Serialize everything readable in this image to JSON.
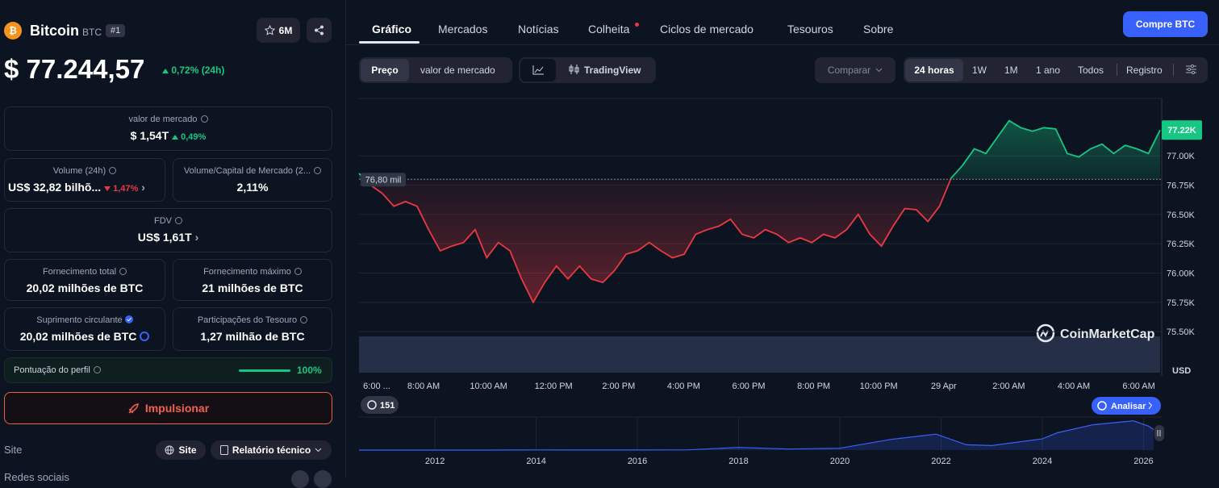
{
  "header": {
    "name": "Bitcoin",
    "symbol": "BTC",
    "rank": "#1",
    "watchlist": "6M"
  },
  "price": {
    "value": "$ 77.244,57",
    "change": "0,72% (24h)"
  },
  "stats": {
    "market_cap": {
      "label": "valor de mercado",
      "value": "$ 1,54T",
      "change": "0,49%"
    },
    "volume": {
      "label": "Volume (24h)",
      "value": "US$ 32,82 bilhõ...",
      "change": "1,47%"
    },
    "volume_ratio": {
      "label": "Volume/Capital de Mercado (2...",
      "value": "2,11%"
    },
    "fdv": {
      "label": "FDV",
      "value": "US$ 1,61T"
    },
    "total_supply": {
      "label": "Fornecimento total",
      "value": "20,02 milhões de BTC"
    },
    "max_supply": {
      "label": "Fornecimento máximo",
      "value": "21 milhões de BTC"
    },
    "circulating": {
      "label": "Suprimento circulante",
      "value": "20,02 milhões de BTC"
    },
    "treasury": {
      "label": "Participações do Tesouro",
      "value": "1,27 milhão de BTC"
    }
  },
  "profile": {
    "label": "Pontuação do perfil",
    "value": "100%"
  },
  "boost": "Impulsionar",
  "links": {
    "label": "Site",
    "site": "Site",
    "whitepaper": "Relatório técnico",
    "social": "Redes sociais"
  },
  "tabs": [
    "Gráfico",
    "Mercados",
    "Notícias",
    "Colheita",
    "Ciclos de mercado",
    "Tesouros",
    "Sobre"
  ],
  "buy": "Compre BTC",
  "toolbar": {
    "price": "Preço",
    "market_cap": "valor de mercado",
    "tradingview": "TradingView",
    "compare": "Comparar",
    "ranges": [
      "24 horas",
      "1W",
      "1M",
      "1 ano",
      "Todos"
    ],
    "log": "Registro"
  },
  "chart_data": {
    "type": "line",
    "values": [
      76850,
      76750,
      76680,
      76570,
      76610,
      76570,
      76370,
      76190,
      76230,
      76260,
      76370,
      76130,
      76260,
      76190,
      75950,
      75750,
      75920,
      76060,
      75950,
      76060,
      75950,
      75920,
      76020,
      76160,
      76190,
      76260,
      76190,
      76130,
      76160,
      76330,
      76370,
      76400,
      76460,
      76330,
      76300,
      76370,
      76330,
      76260,
      76300,
      76260,
      76330,
      76300,
      76370,
      76500,
      76330,
      76230,
      76400,
      76550,
      76540,
      76440,
      76570,
      76810,
      76920,
      77060,
      77020,
      77160,
      77300,
      77240,
      77210,
      77240,
      77230,
      77020,
      76990,
      77060,
      77100,
      77020,
      77090,
      77060,
      77020,
      77220
    ],
    "ylim": [
      75150,
      77490
    ],
    "yticks": [
      {
        "value": 75500,
        "label": "75.50K"
      },
      {
        "value": 75750,
        "label": "75.75K"
      },
      {
        "value": 76000,
        "label": "76.00K"
      },
      {
        "value": 76250,
        "label": "76.25K"
      },
      {
        "value": 76500,
        "label": "76.50K"
      },
      {
        "value": 76750,
        "label": "76.75K"
      },
      {
        "value": 77000,
        "label": "77.00K"
      }
    ],
    "reference": {
      "value": 76800,
      "label": "76,80 mil"
    },
    "current": {
      "value": 77220,
      "label": "77.22K"
    },
    "x_labels": [
      "6:00 ...",
      "8:00 AM",
      "10:00 AM",
      "12:00 PM",
      "2:00 PM",
      "4:00 PM",
      "6:00 PM",
      "8:00 PM",
      "10:00 PM",
      "29 Apr",
      "2:00 AM",
      "4:00 AM",
      "6:00 AM"
    ],
    "unit": "USD",
    "up_color": "#16c784",
    "down_color": "#ea3943",
    "grid": true,
    "watermark": "CoinMarketCap",
    "events": "151",
    "analyze": "Analisar"
  },
  "navigator": {
    "type": "line",
    "x": [
      2010.5,
      2011.5,
      2012,
      2013,
      2014,
      2015,
      2016,
      2017,
      2018,
      2019,
      2020,
      2021,
      2021.9,
      2022.5,
      2023,
      2024,
      2024.3,
      2025,
      2025.8,
      2026.1,
      2026.2
    ],
    "values": [
      0,
      10,
      5,
      100,
      500,
      300,
      400,
      1000,
      10000,
      4000,
      7000,
      40000,
      60000,
      20000,
      17000,
      42000,
      65000,
      95000,
      110000,
      90000,
      77000
    ],
    "xlim": [
      2010.5,
      2026.2
    ],
    "ylim": [
      0,
      115000
    ],
    "xticks": [
      2012,
      2014,
      2016,
      2018,
      2020,
      2022,
      2024,
      2026
    ],
    "color": "#3861fb"
  }
}
